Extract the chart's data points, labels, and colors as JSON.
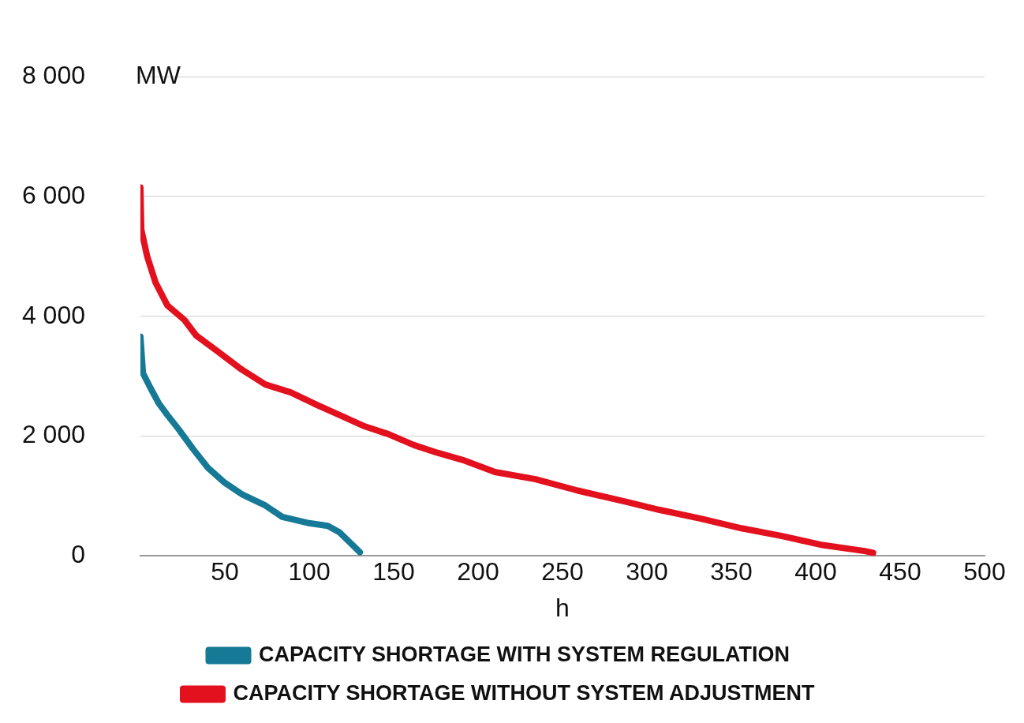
{
  "chart_data": {
    "type": "line",
    "xlabel": "h",
    "ylabel": "MW",
    "xlim": [
      0,
      500
    ],
    "xticks": [
      50,
      100,
      150,
      200,
      250,
      300,
      350,
      400,
      450,
      500
    ],
    "ylim": [
      0,
      8000
    ],
    "yticks": [
      {
        "value": 0,
        "label": "0"
      },
      {
        "value": 2000,
        "label": "2 000"
      },
      {
        "value": 4000,
        "label": "4 000"
      },
      {
        "value": 6000,
        "label": "6 000"
      },
      {
        "value": 8000,
        "label": "8 000"
      }
    ],
    "grid": "y",
    "legend": "bottom",
    "marker": "none",
    "series": [
      {
        "name": "CAPACITY SHORTAGE WITH SYSTEM REGULATION",
        "color": "#167a96",
        "x": [
          0,
          1.5,
          6,
          11,
          16,
          23,
          31,
          40,
          50,
          60,
          74,
          84,
          99,
          111,
          118,
          125,
          130
        ],
        "values": [
          3660,
          3050,
          2800,
          2540,
          2350,
          2100,
          1790,
          1470,
          1220,
          1030,
          840,
          650,
          550,
          500,
          390,
          200,
          60
        ]
      },
      {
        "name": "CAPACITY SHORTAGE WITHOUT SYSTEM ADJUSTMENT",
        "color": "#e3101e",
        "x": [
          0,
          0.5,
          4,
          9,
          16,
          26,
          33,
          45,
          60,
          74,
          89,
          103,
          118,
          133,
          147,
          162,
          176,
          191,
          210,
          234,
          259,
          288,
          307,
          332,
          356,
          380,
          404,
          429,
          434
        ],
        "values": [
          6150,
          5450,
          5000,
          4560,
          4180,
          3940,
          3680,
          3430,
          3110,
          2860,
          2730,
          2540,
          2350,
          2160,
          2030,
          1850,
          1720,
          1600,
          1400,
          1280,
          1090,
          900,
          770,
          620,
          460,
          330,
          180,
          80,
          50
        ]
      }
    ]
  }
}
